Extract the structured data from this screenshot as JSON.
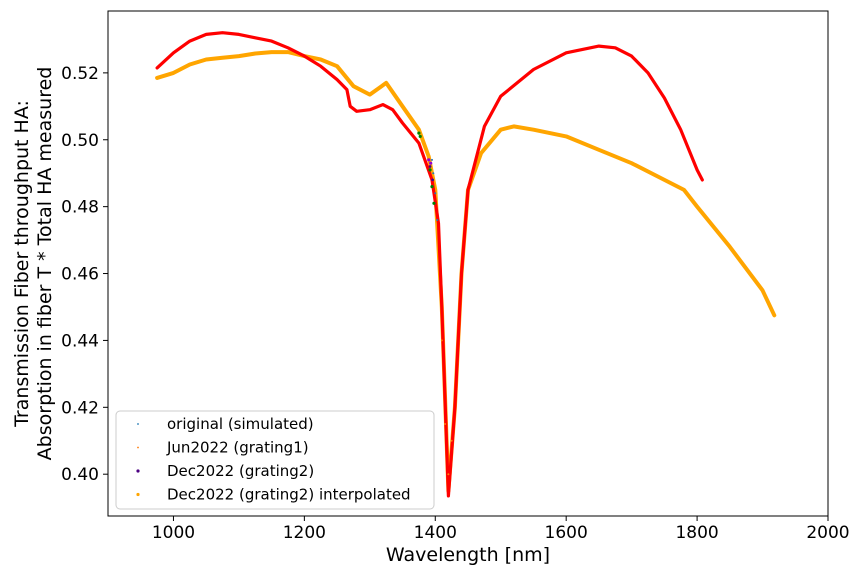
{
  "chart_data": {
    "type": "scatter",
    "xlabel": "Wavelength [nm]",
    "ylabel_lines": [
      "Transmission Fiber throughput HA:",
      "Absorption in fiber T * Total HA measured"
    ],
    "xlim": [
      900,
      2000
    ],
    "ylim": [
      0.3875,
      0.5385
    ],
    "xticks": [
      "1000",
      "1200",
      "1400",
      "1600",
      "1800",
      "2000"
    ],
    "yticks": [
      "0.40",
      "0.42",
      "0.44",
      "0.46",
      "0.48",
      "0.50",
      "0.52"
    ],
    "legend_position": "lower-left",
    "grid": false,
    "series": [
      {
        "name": "original (simulated)",
        "color": "#1f77b4",
        "marker": "small-dot",
        "points": [
          [
            1395,
            0.494
          ],
          [
            1397,
            0.49
          ],
          [
            1400,
            0.484
          ],
          [
            1403,
            0.476
          ]
        ]
      },
      {
        "name": "Jun2022 (grating1)",
        "color": "#ff7f0e",
        "marker": "small-dot",
        "points": [
          [
            1410,
            0.44
          ],
          [
            1415,
            0.415
          ],
          [
            1420,
            0.4
          ],
          [
            1425,
            0.41
          ]
        ]
      },
      {
        "name": "Dec2022 (grating2)",
        "color": "#4b0082",
        "marker": "dot",
        "overlay": [
          {
            "color": "#008000",
            "points": [
              [
                1375,
                0.502
              ],
              [
                1377,
                0.501
              ],
              [
                1392,
                0.491
              ],
              [
                1395,
                0.486
              ],
              [
                1398,
                0.481
              ]
            ]
          },
          {
            "color": "#9400d3",
            "points": [
              [
                1390,
                0.494
              ],
              [
                1393,
                0.493
              ]
            ]
          }
        ],
        "points": [
          [
            1392,
            0.492
          ],
          [
            1396,
            0.488
          ]
        ]
      },
      {
        "name": "Dec2022 (grating2) interpolated",
        "color": "#ffa500",
        "marker": "dot",
        "points": [
          [
            975,
            0.5185
          ],
          [
            1000,
            0.52
          ],
          [
            1025,
            0.5225
          ],
          [
            1050,
            0.524
          ],
          [
            1075,
            0.5245
          ],
          [
            1100,
            0.525
          ],
          [
            1125,
            0.5258
          ],
          [
            1150,
            0.5262
          ],
          [
            1175,
            0.5262
          ],
          [
            1200,
            0.525
          ],
          [
            1225,
            0.524
          ],
          [
            1250,
            0.522
          ],
          [
            1275,
            0.516
          ],
          [
            1300,
            0.5135
          ],
          [
            1325,
            0.517
          ],
          [
            1350,
            0.51
          ],
          [
            1375,
            0.503
          ],
          [
            1390,
            0.495
          ],
          [
            1400,
            0.485
          ],
          [
            1410,
            0.45
          ],
          [
            1420,
            0.395
          ],
          [
            1430,
            0.42
          ],
          [
            1440,
            0.46
          ],
          [
            1450,
            0.485
          ],
          [
            1470,
            0.496
          ],
          [
            1500,
            0.503
          ],
          [
            1520,
            0.504
          ],
          [
            1550,
            0.503
          ],
          [
            1600,
            0.501
          ],
          [
            1650,
            0.497
          ],
          [
            1700,
            0.493
          ],
          [
            1750,
            0.488
          ],
          [
            1780,
            0.485
          ],
          [
            1800,
            0.48
          ],
          [
            1850,
            0.468
          ],
          [
            1900,
            0.455
          ],
          [
            1918,
            0.4475
          ]
        ]
      },
      {
        "name": "",
        "color": "#ff0000",
        "marker": "dot",
        "in_legend": false,
        "points": [
          [
            975,
            0.5215
          ],
          [
            1000,
            0.526
          ],
          [
            1025,
            0.5295
          ],
          [
            1050,
            0.5315
          ],
          [
            1075,
            0.532
          ],
          [
            1100,
            0.5315
          ],
          [
            1125,
            0.5305
          ],
          [
            1150,
            0.5295
          ],
          [
            1175,
            0.5275
          ],
          [
            1200,
            0.525
          ],
          [
            1225,
            0.522
          ],
          [
            1250,
            0.518
          ],
          [
            1265,
            0.515
          ],
          [
            1270,
            0.51
          ],
          [
            1280,
            0.5085
          ],
          [
            1300,
            0.509
          ],
          [
            1320,
            0.5105
          ],
          [
            1335,
            0.509
          ],
          [
            1350,
            0.505
          ],
          [
            1375,
            0.499
          ],
          [
            1395,
            0.488
          ],
          [
            1405,
            0.475
          ],
          [
            1410,
            0.45
          ],
          [
            1420,
            0.3935
          ],
          [
            1430,
            0.42
          ],
          [
            1440,
            0.46
          ],
          [
            1450,
            0.485
          ],
          [
            1475,
            0.504
          ],
          [
            1500,
            0.513
          ],
          [
            1550,
            0.521
          ],
          [
            1600,
            0.526
          ],
          [
            1650,
            0.528
          ],
          [
            1675,
            0.5275
          ],
          [
            1700,
            0.525
          ],
          [
            1725,
            0.52
          ],
          [
            1750,
            0.5125
          ],
          [
            1775,
            0.503
          ],
          [
            1800,
            0.491
          ],
          [
            1808,
            0.488
          ]
        ]
      }
    ]
  }
}
